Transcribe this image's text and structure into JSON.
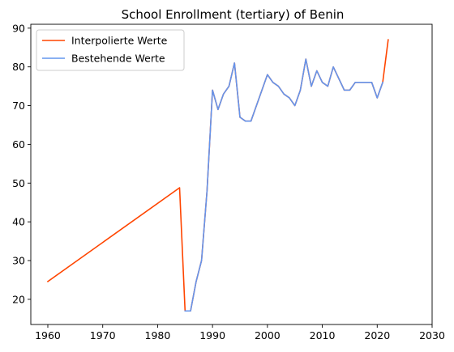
{
  "chart_data": {
    "type": "line",
    "title": "School Enrollment (tertiary) of Benin",
    "xlabel": "",
    "ylabel": "",
    "xlim": [
      1956.9,
      2030
    ],
    "ylim": [
      13.5,
      91
    ],
    "xticks": [
      1960,
      1970,
      1980,
      1990,
      2000,
      2010,
      2020,
      2030
    ],
    "yticks": [
      20,
      30,
      40,
      50,
      60,
      70,
      80,
      90
    ],
    "grid": false,
    "legend_position": "top-left",
    "series": [
      {
        "name": "Interpolierte Werte",
        "color": "#ff4500",
        "x": [
          1960,
          1984,
          1985,
          1986,
          1987,
          1988,
          1989,
          1990,
          1991,
          1992,
          1993,
          1994,
          1995,
          1996,
          1997,
          1998,
          1999,
          2000,
          2001,
          2002,
          2003,
          2004,
          2005,
          2006,
          2007,
          2008,
          2009,
          2010,
          2011,
          2012,
          2013,
          2014,
          2015,
          2016,
          2017,
          2018,
          2019,
          2020,
          2021,
          2022
        ],
        "y": [
          24.6,
          48.8,
          17,
          17,
          24.5,
          30,
          48,
          74,
          69,
          73,
          75,
          81,
          67,
          66,
          66,
          70,
          74,
          78,
          76,
          75,
          73,
          72,
          70,
          74,
          82,
          75,
          79,
          76,
          75,
          80,
          77,
          74,
          74,
          76,
          76,
          76,
          76,
          72,
          76,
          87
        ]
      },
      {
        "name": "Bestehende Werte",
        "color": "#6495ed",
        "x": [
          1985,
          1986,
          1987,
          1988,
          1989,
          1990,
          1991,
          1992,
          1993,
          1994,
          1995,
          1996,
          1997,
          1998,
          1999,
          2000,
          2001,
          2002,
          2003,
          2004,
          2005,
          2006,
          2007,
          2008,
          2009,
          2010,
          2011,
          2012,
          2013,
          2014,
          2015,
          2016,
          2017,
          2018,
          2019,
          2020,
          2021
        ],
        "y": [
          17,
          17,
          24.5,
          30,
          48,
          74,
          69,
          73,
          75,
          81,
          67,
          66,
          66,
          70,
          74,
          78,
          76,
          75,
          73,
          72,
          70,
          74,
          82,
          75,
          79,
          76,
          75,
          80,
          77,
          74,
          74,
          76,
          76,
          76,
          76,
          72,
          76
        ]
      }
    ]
  }
}
